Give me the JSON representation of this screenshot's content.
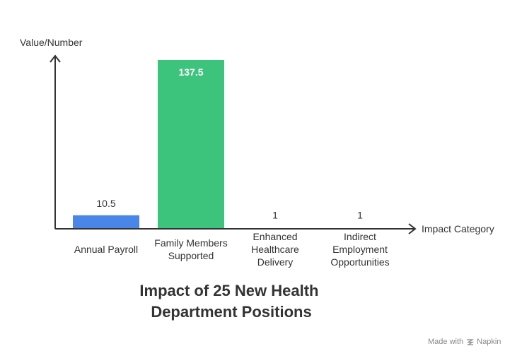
{
  "chart_data": {
    "type": "bar",
    "title": "Impact of 25 New Health Department Positions",
    "xlabel": "Impact Category",
    "ylabel": "Value/Number",
    "categories": [
      "Annual Payroll",
      "Family Members Supported",
      "Enhanced Healthcare Delivery",
      "Indirect Employment Opportunities"
    ],
    "values": [
      10.5,
      137.5,
      1,
      1
    ],
    "value_labels": [
      "10.5",
      "137.5",
      "1",
      "1"
    ],
    "colors": [
      "#4a86e8",
      "#3cc47c",
      "#9e9e9e",
      "#9e9e9e"
    ],
    "ylim": [
      0,
      137.5
    ],
    "grid": false,
    "legend": "none"
  },
  "watermark": {
    "prefix": "Made with",
    "brand": "Napkin",
    "icon": "napkin-logo-icon"
  }
}
